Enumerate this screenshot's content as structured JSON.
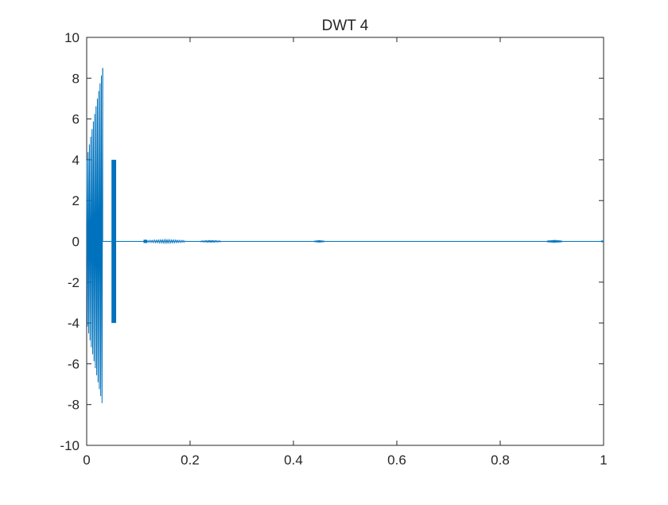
{
  "title": "DWT 4",
  "chart_data": {
    "type": "line",
    "title": "DWT 4",
    "xlabel": "",
    "ylabel": "",
    "xlim": [
      0,
      1
    ],
    "ylim": [
      -10,
      10
    ],
    "x_ticks": [
      "0",
      "0.2",
      "0.4",
      "0.6",
      "0.8",
      "1"
    ],
    "y_ticks": [
      "10",
      "8",
      "6",
      "4",
      "2",
      "0",
      "-2",
      "-4",
      "-6",
      "-8",
      "-10"
    ],
    "grid": false,
    "legend": "none",
    "series_color": "#0072BD",
    "series": [
      {
        "segments": [
          {
            "kind": "chirp_envelope",
            "x_range": [
              0.0,
              0.031
            ],
            "peak_start": 4.0,
            "peak_end": 8.5,
            "trough_start": -4.0,
            "trough_end": -8.1,
            "cycles": 12
          },
          {
            "kind": "flat",
            "x_range": [
              0.031,
              0.048
            ],
            "value": 0
          },
          {
            "kind": "dense_block",
            "x_range": [
              0.048,
              0.057
            ],
            "max": 4.0,
            "min": -4.0
          },
          {
            "kind": "flat",
            "x_range": [
              0.057,
              0.11
            ],
            "value": 0
          },
          {
            "kind": "dense_block",
            "x_range": [
              0.11,
              0.117
            ],
            "max": 0.08,
            "min": -0.08
          },
          {
            "kind": "small_ripple",
            "x_range": [
              0.117,
              0.19
            ],
            "amplitude": 0.08
          },
          {
            "kind": "small_ripple",
            "x_range": [
              0.22,
              0.26
            ],
            "amplitude": 0.03
          },
          {
            "kind": "small_ripple",
            "x_range": [
              0.44,
              0.46
            ],
            "amplitude": 0.05
          },
          {
            "kind": "flat",
            "x_range": [
              0.19,
              1.0
            ],
            "value": 0
          },
          {
            "kind": "small_ripple",
            "x_range": [
              0.89,
              0.92
            ],
            "amplitude": 0.03
          },
          {
            "kind": "dense_block",
            "x_range": [
              0.995,
              1.0
            ],
            "max": 0.04,
            "min": -0.04
          }
        ]
      }
    ]
  }
}
